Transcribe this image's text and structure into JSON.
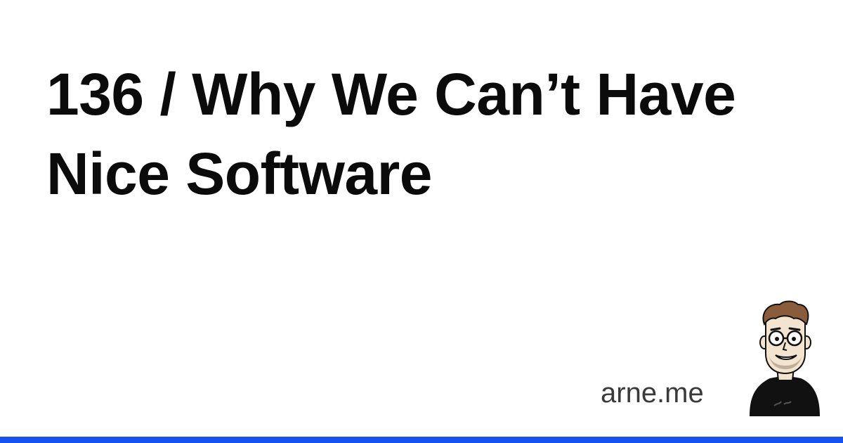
{
  "title": "136 / Why We Can’t Have Nice Software",
  "site": "arne.me",
  "colors": {
    "background": "#ffffff",
    "text": "#0b0b0b",
    "site_text": "#3a3a3a",
    "accent_bar": "#1552f0"
  },
  "icons": {
    "avatar": "cartoon-author-avatar"
  }
}
